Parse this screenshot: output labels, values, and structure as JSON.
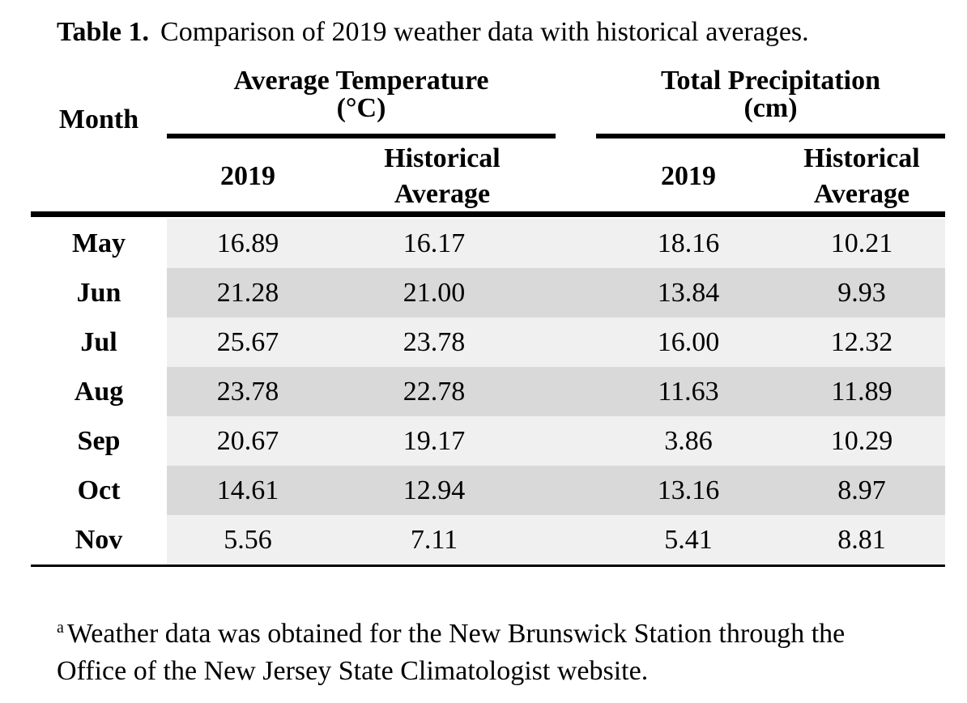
{
  "caption": {
    "label": "Table 1.",
    "text": "Comparison of 2019 weather data with historical averages."
  },
  "header": {
    "month": "Month",
    "temp_group_line1": "Average Temperature",
    "temp_group_line2": "(°C)",
    "precip_group_line1": "Total Precipitation",
    "precip_group_line2": "(cm)",
    "col_2019": "2019",
    "col_hist_line1": "Historical",
    "col_hist_line2": "Average"
  },
  "rows": [
    {
      "month": "May",
      "temp_2019": "16.89",
      "temp_hist": "16.17",
      "precip_2019": "18.16",
      "precip_hist": "10.21"
    },
    {
      "month": "Jun",
      "temp_2019": "21.28",
      "temp_hist": "21.00",
      "precip_2019": "13.84",
      "precip_hist": "9.93"
    },
    {
      "month": "Jul",
      "temp_2019": "25.67",
      "temp_hist": "23.78",
      "precip_2019": "16.00",
      "precip_hist": "12.32"
    },
    {
      "month": "Aug",
      "temp_2019": "23.78",
      "temp_hist": "22.78",
      "precip_2019": "11.63",
      "precip_hist": "11.89"
    },
    {
      "month": "Sep",
      "temp_2019": "20.67",
      "temp_hist": "19.17",
      "precip_2019": "3.86",
      "precip_hist": "10.29"
    },
    {
      "month": "Oct",
      "temp_2019": "14.61",
      "temp_hist": "12.94",
      "precip_2019": "13.16",
      "precip_hist": "8.97"
    },
    {
      "month": "Nov",
      "temp_2019": "5.56",
      "temp_hist": "7.11",
      "precip_2019": "5.41",
      "precip_hist": "8.81"
    }
  ],
  "footnote": {
    "marker": "a",
    "line1": "Weather data was obtained for the New Brunswick Station through the",
    "line2": "Office of the New Jersey State Climatologist website."
  },
  "colors": {
    "row_light": "#f0f0f0",
    "row_dark": "#d9d9d9",
    "rule": "#000000"
  }
}
